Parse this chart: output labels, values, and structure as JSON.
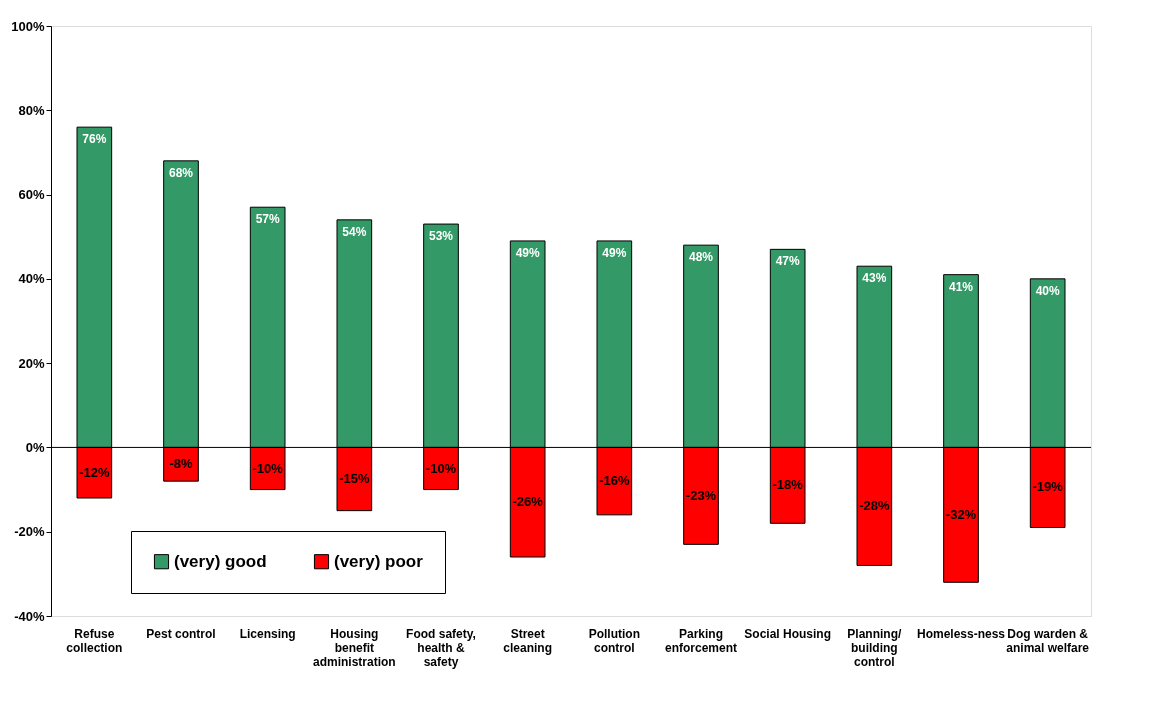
{
  "chart_data": {
    "type": "bar",
    "stacked": true,
    "categories": [
      "Refuse collection",
      "Pest control",
      "Licensing",
      "Housing benefit administration",
      "Food safety, health & safety",
      "Street cleaning",
      "Pollution control",
      "Parking enforcement",
      "Social Housing",
      "Planning/ building control",
      "Homeless-ness",
      "Dog warden & animal welfare"
    ],
    "series": [
      {
        "name": "(very) good",
        "color": "#339966",
        "values": [
          76,
          68,
          57,
          54,
          53,
          49,
          49,
          48,
          47,
          43,
          41,
          40
        ],
        "value_labels": [
          "76%",
          "68%",
          "57%",
          "54%",
          "53%",
          "49%",
          "49%",
          "48%",
          "47%",
          "43%",
          "41%",
          "40%"
        ]
      },
      {
        "name": "(very) poor",
        "color": "#ff0000",
        "values": [
          -12,
          -8,
          -10,
          -15,
          -10,
          -26,
          -16,
          -23,
          -18,
          -28,
          -32,
          -19
        ],
        "value_labels": [
          "-12%",
          "-8%",
          "-10%",
          "-15%",
          "-10%",
          "-26%",
          "-16%",
          "-23%",
          "-18%",
          "-28%",
          "-32%",
          "-19%"
        ]
      }
    ],
    "ylim": [
      -40,
      100
    ],
    "yticks": [
      {
        "value": -40,
        "label": "-40%"
      },
      {
        "value": -20,
        "label": "-20%"
      },
      {
        "value": 0,
        "label": "0%"
      },
      {
        "value": 20,
        "label": "20%"
      },
      {
        "value": 40,
        "label": "40%"
      },
      {
        "value": 60,
        "label": "60%"
      },
      {
        "value": 80,
        "label": "80%"
      },
      {
        "value": 100,
        "label": "100%"
      }
    ],
    "legend": "bottom left"
  }
}
